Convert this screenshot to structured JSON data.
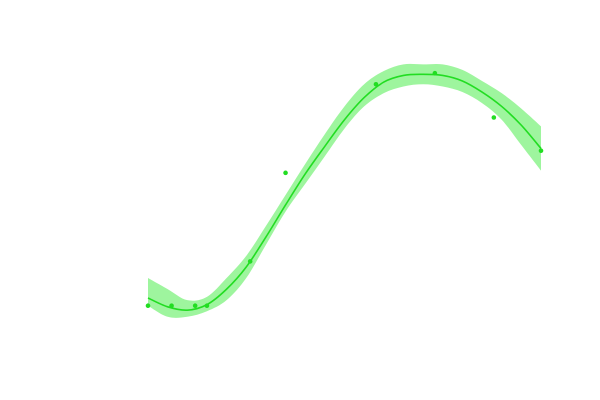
{
  "chart_data": {
    "type": "scatter",
    "title": "",
    "xlabel": "",
    "ylabel": "",
    "grid": false,
    "legend": "none",
    "xlim": [
      0,
      10
    ],
    "ylim": [
      -0.2,
      2.6
    ],
    "axes_visible": false,
    "colors": {
      "points": "#22dd22",
      "fit_line": "#22dd22",
      "confidence_band": "#9ef59e"
    },
    "series": [
      {
        "kind": "points",
        "x": [
          0.0,
          0.6,
          1.2,
          1.5,
          2.6,
          3.5,
          5.8,
          7.3,
          8.8,
          10.0
        ],
        "y": [
          0.2,
          0.2,
          0.2,
          0.2,
          0.6,
          1.4,
          2.2,
          2.3,
          1.9,
          1.6
        ]
      },
      {
        "kind": "fit",
        "x": [
          0.0,
          0.5,
          1.0,
          1.5,
          2.0,
          2.5,
          3.0,
          3.5,
          4.0,
          4.5,
          5.0,
          5.5,
          6.0,
          6.5,
          7.0,
          7.5,
          8.0,
          8.5,
          9.0,
          9.5,
          10.0
        ],
        "y": [
          0.27,
          0.19,
          0.16,
          0.21,
          0.35,
          0.55,
          0.82,
          1.11,
          1.39,
          1.64,
          1.88,
          2.08,
          2.22,
          2.28,
          2.29,
          2.28,
          2.23,
          2.13,
          2.0,
          1.83,
          1.62
        ],
        "lower": [
          0.2,
          0.1,
          0.1,
          0.15,
          0.25,
          0.45,
          0.75,
          1.05,
          1.3,
          1.55,
          1.8,
          2.0,
          2.12,
          2.18,
          2.2,
          2.18,
          2.13,
          2.03,
          1.88,
          1.65,
          1.42
        ],
        "upper": [
          0.45,
          0.35,
          0.25,
          0.28,
          0.45,
          0.65,
          0.92,
          1.2,
          1.48,
          1.75,
          2.0,
          2.2,
          2.32,
          2.38,
          2.38,
          2.38,
          2.33,
          2.23,
          2.12,
          1.98,
          1.82
        ]
      }
    ]
  }
}
